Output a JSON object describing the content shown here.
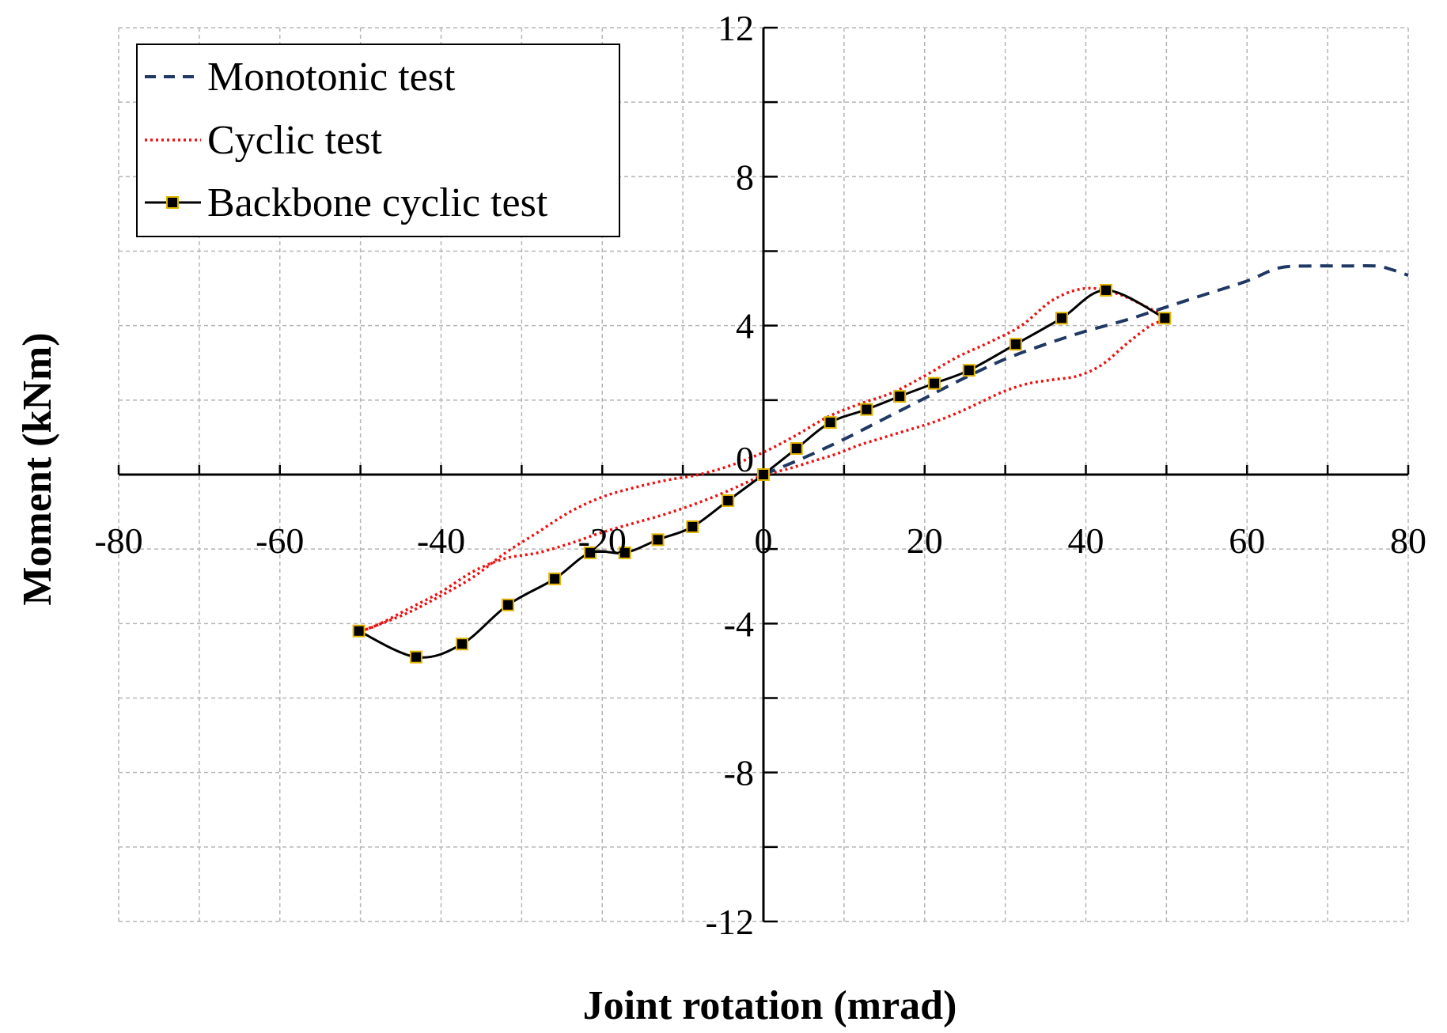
{
  "chart_data": {
    "type": "line",
    "title": "",
    "xlabel": "Joint rotation (mrad)",
    "ylabel": "Moment (kNm)",
    "xlim": [
      -80,
      80
    ],
    "ylim": [
      -12,
      12
    ],
    "x_ticks": [
      -80,
      -60,
      -40,
      -20,
      0,
      20,
      40,
      60,
      80
    ],
    "y_ticks": [
      -12,
      -8,
      -4,
      0,
      4,
      8,
      12
    ],
    "x_tick_labels": [
      "-80",
      "-60",
      "-40",
      "-20",
      "0",
      "20",
      "40",
      "60",
      "80"
    ],
    "y_tick_labels": [
      "-12",
      "-8",
      "-4",
      "0",
      "4",
      "8",
      "12"
    ],
    "grid": true,
    "legend_position": "top-left",
    "series": [
      {
        "name": "Monotonic test",
        "style": "dashed",
        "color": "#1f3864",
        "x": [
          0,
          5,
          10,
          15,
          20,
          25,
          30,
          35,
          40,
          45,
          50,
          55,
          60,
          64,
          68,
          72,
          76,
          78,
          80
        ],
        "y": [
          0,
          0.45,
          0.95,
          1.5,
          2.05,
          2.6,
          3.1,
          3.5,
          3.85,
          4.15,
          4.5,
          4.85,
          5.2,
          5.55,
          5.6,
          5.6,
          5.6,
          5.5,
          5.35
        ]
      },
      {
        "name": "Cyclic test",
        "style": "dotted",
        "color": "#ee1111",
        "x": [
          0,
          3,
          6,
          9,
          12,
          15,
          18,
          21,
          24,
          27,
          30,
          33,
          36,
          39,
          42,
          45,
          48,
          50,
          48,
          44,
          40,
          36,
          32,
          28,
          24,
          20,
          16,
          12,
          8,
          4,
          0,
          -4,
          -8,
          -12,
          -16,
          -20,
          -24,
          -28,
          -32,
          -36,
          -40,
          -44,
          -48,
          -50,
          -48,
          -44,
          -40,
          -36,
          -32,
          -28,
          -24,
          -20,
          -16,
          -12,
          -8,
          -4,
          0
        ],
        "y": [
          0,
          0.15,
          0.35,
          0.55,
          0.8,
          1.0,
          1.2,
          1.4,
          1.65,
          1.95,
          2.25,
          2.45,
          2.55,
          2.65,
          2.95,
          3.5,
          4.0,
          4.2,
          4.45,
          4.85,
          5.0,
          4.7,
          4.0,
          3.55,
          3.15,
          2.65,
          2.2,
          1.9,
          1.55,
          1.05,
          0.6,
          0.25,
          0.0,
          -0.15,
          -0.35,
          -0.6,
          -1.0,
          -1.55,
          -2.1,
          -2.75,
          -3.25,
          -3.7,
          -4.05,
          -4.2,
          -4.05,
          -3.6,
          -3.15,
          -2.6,
          -2.25,
          -2.1,
          -1.85,
          -1.55,
          -1.3,
          -1.05,
          -0.75,
          -0.4,
          0
        ]
      },
      {
        "name": "Backbone cyclic test",
        "style": "solid-square-markers",
        "color": "#000000",
        "marker_edge_color": "#e2b500",
        "x": [
          0,
          4.1,
          8.3,
          12.8,
          16.9,
          21.2,
          25.5,
          31.3,
          37.0,
          42.5,
          49.8,
          -4.4,
          -8.8,
          -13.1,
          -17.2,
          -21.5,
          -25.9,
          -31.7,
          -37.4,
          -43.1,
          -50.2
        ],
        "y": [
          0,
          0.7,
          1.4,
          1.75,
          2.1,
          2.45,
          2.8,
          3.5,
          4.2,
          4.95,
          4.2,
          -0.7,
          -1.4,
          -1.75,
          -2.1,
          -2.1,
          -2.8,
          -3.5,
          -4.55,
          -4.9,
          -4.2
        ]
      }
    ]
  }
}
